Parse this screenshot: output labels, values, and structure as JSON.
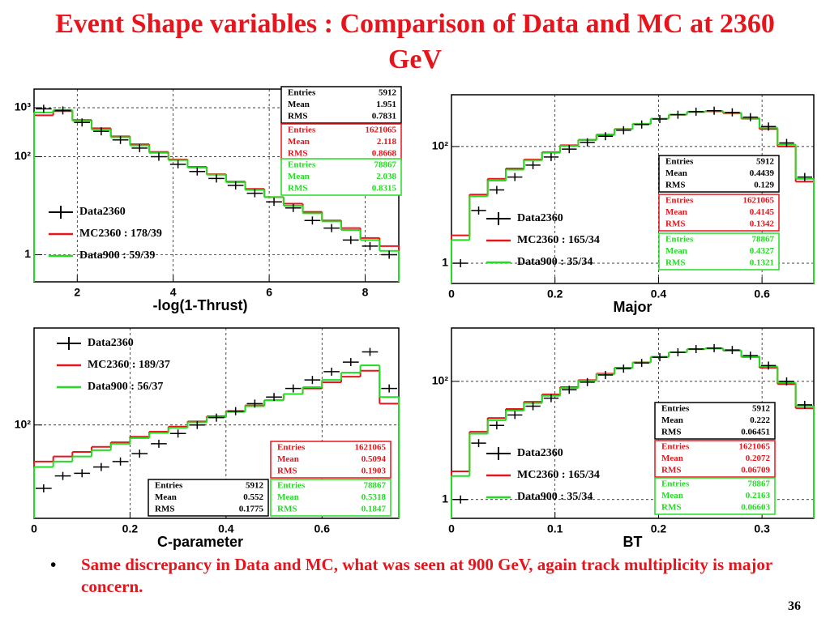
{
  "title": "Event Shape variables : Comparison of Data and MC at 2360 GeV",
  "bullet": "Same discrepancy in Data and MC, what was seen at 900 GeV, again track multiplicity is major concern.",
  "page_number": 36,
  "chart_data": [
    {
      "type": "histogram",
      "x_label": "-log(1-Thrust)",
      "log_y": true,
      "grid": true,
      "xlim": [
        1.1,
        8.7
      ],
      "ylim": [
        0.28,
        2400
      ],
      "xticks": [
        2,
        4,
        6,
        8
      ],
      "yticks": [
        1,
        {
          "value": 100,
          "label": "10²"
        },
        {
          "value": 1000,
          "label": "10³"
        }
      ],
      "bins": [
        1.1,
        1.5,
        1.9,
        2.3,
        2.7,
        3.1,
        3.5,
        3.9,
        4.3,
        4.7,
        5.1,
        5.5,
        5.9,
        6.3,
        6.7,
        7.1,
        7.5,
        7.9,
        8.3,
        8.7
      ],
      "series": [
        {
          "name": "Data2360",
          "style": "points",
          "color": "#000000",
          "values": [
            950,
            880,
            500,
            330,
            220,
            150,
            100,
            70,
            50,
            36,
            26,
            18,
            12,
            9,
            5,
            3.5,
            2,
            1.5,
            1
          ]
        },
        {
          "name": "MC2360 : 178/39",
          "style": "step",
          "color": "#e8141c",
          "values": [
            700,
            850,
            560,
            380,
            260,
            180,
            125,
            88,
            62,
            44,
            31,
            22,
            15,
            11,
            7.5,
            5,
            3.5,
            2.2,
            1.5
          ]
        },
        {
          "name": "Data900 : 59/39",
          "style": "step",
          "color": "#22dd22",
          "values": [
            800,
            900,
            540,
            360,
            250,
            170,
            120,
            85,
            60,
            43,
            30,
            21,
            15,
            10,
            7,
            4.8,
            3.2,
            2,
            1.2
          ]
        }
      ],
      "stat_labels": [
        "Entries",
        "Mean",
        "RMS"
      ],
      "stats": [
        {
          "color": "#000000",
          "entries": 5912,
          "mean": 1.951,
          "rms": 0.7831
        },
        {
          "color": "#e8141c",
          "entries": 1621065,
          "mean": 2.118,
          "rms": 0.8668
        },
        {
          "color": "#22dd22",
          "entries": 78867,
          "mean": 2.038,
          "rms": 0.8315
        }
      ]
    },
    {
      "type": "histogram",
      "x_label": "Major",
      "log_y": true,
      "grid": true,
      "xlim": [
        0,
        0.7
      ],
      "ylim": [
        0.45,
        770
      ],
      "xticks": [
        0,
        0.2,
        0.4,
        0.6
      ],
      "yticks": [
        1,
        {
          "value": 100,
          "label": "10²"
        }
      ],
      "bins": [
        0,
        0.035,
        0.07,
        0.105,
        0.14,
        0.175,
        0.21,
        0.245,
        0.28,
        0.315,
        0.35,
        0.385,
        0.42,
        0.455,
        0.49,
        0.525,
        0.56,
        0.595,
        0.63,
        0.665,
        0.7
      ],
      "series": [
        {
          "name": "Data2360",
          "style": "points",
          "color": "#000000",
          "values": [
            1,
            8,
            18,
            30,
            48,
            66,
            90,
            118,
            150,
            190,
            238,
            295,
            350,
            395,
            410,
            385,
            318,
            220,
            115,
            30
          ]
        },
        {
          "name": "MC2360 : 165/34",
          "style": "step",
          "color": "#e8141c",
          "values": [
            3,
            15,
            28,
            42,
            60,
            80,
            105,
            130,
            160,
            200,
            245,
            300,
            350,
            390,
            400,
            370,
            300,
            200,
            100,
            25
          ]
        },
        {
          "name": "Data900 : 35/34",
          "style": "step",
          "color": "#22dd22",
          "values": [
            2.5,
            14,
            26,
            40,
            58,
            78,
            102,
            128,
            158,
            198,
            243,
            300,
            352,
            395,
            405,
            378,
            308,
            210,
            108,
            28
          ]
        }
      ],
      "stat_labels": [
        "Entries",
        "Mean",
        "RMS"
      ],
      "stats": [
        {
          "color": "#000000",
          "entries": 5912,
          "mean": 0.4439,
          "rms": 0.129
        },
        {
          "color": "#e8141c",
          "entries": 1621065,
          "mean": 0.4145,
          "rms": 0.1342
        },
        {
          "color": "#22dd22",
          "entries": 78867,
          "mean": 0.4327,
          "rms": 0.1321
        }
      ]
    },
    {
      "type": "histogram",
      "x_label": "C-parameter",
      "log_y": true,
      "grid": true,
      "xlim": [
        0,
        0.76
      ],
      "ylim": [
        17,
        630
      ],
      "xticks": [
        0,
        0.2,
        0.4,
        0.6
      ],
      "yticks": [
        {
          "value": 100,
          "label": "10²"
        }
      ],
      "bins": [
        0,
        0.04,
        0.08,
        0.12,
        0.16,
        0.2,
        0.24,
        0.28,
        0.32,
        0.36,
        0.4,
        0.44,
        0.48,
        0.52,
        0.56,
        0.6,
        0.64,
        0.68,
        0.72,
        0.76
      ],
      "series": [
        {
          "name": "Data2360",
          "style": "points",
          "color": "#000000",
          "values": [
            30,
            38,
            40,
            45,
            50,
            58,
            70,
            85,
            100,
            115,
            130,
            150,
            170,
            200,
            235,
            275,
            330,
            400,
            200
          ]
        },
        {
          "name": "MC2360 : 189/37",
          "style": "step",
          "color": "#e8141c",
          "values": [
            50,
            55,
            60,
            66,
            72,
            80,
            88,
            97,
            107,
            118,
            130,
            145,
            160,
            180,
            200,
            225,
            250,
            280,
            150
          ]
        },
        {
          "name": "Data900 : 56/37",
          "style": "step",
          "color": "#22dd22",
          "values": [
            45,
            50,
            55,
            62,
            70,
            78,
            86,
            95,
            105,
            116,
            128,
            143,
            160,
            180,
            205,
            235,
            270,
            310,
            170
          ]
        }
      ],
      "stat_labels": [
        "Entries",
        "Mean",
        "RMS"
      ],
      "stats": [
        {
          "color": "#000000",
          "entries": 5912,
          "mean": 0.552,
          "rms": 0.1775
        },
        {
          "color": "#e8141c",
          "entries": 1621065,
          "mean": 0.5094,
          "rms": 0.1903
        },
        {
          "color": "#22dd22",
          "entries": 78867,
          "mean": 0.5318,
          "rms": 0.1847
        }
      ]
    },
    {
      "type": "histogram",
      "x_label": "BT",
      "log_y": true,
      "grid": true,
      "xlim": [
        0,
        0.35
      ],
      "ylim": [
        0.48,
        800
      ],
      "xticks": [
        0,
        0.1,
        0.2,
        0.3
      ],
      "yticks": [
        1,
        {
          "value": 100,
          "label": "10²"
        }
      ],
      "bins": [
        0,
        0.0175,
        0.035,
        0.0525,
        0.07,
        0.0875,
        0.105,
        0.1225,
        0.14,
        0.1575,
        0.175,
        0.1925,
        0.21,
        0.2275,
        0.245,
        0.2625,
        0.28,
        0.2975,
        0.315,
        0.3325,
        0.35
      ],
      "series": [
        {
          "name": "Data2360",
          "style": "points",
          "color": "#000000",
          "values": [
            1,
            9,
            18,
            27,
            38,
            52,
            72,
            97,
            128,
            164,
            205,
            256,
            310,
            352,
            365,
            340,
            272,
            185,
            100,
            40
          ]
        },
        {
          "name": "MC2360 : 165/34",
          "style": "step",
          "color": "#e8141c",
          "values": [
            3,
            14,
            24,
            34,
            45,
            60,
            80,
            105,
            135,
            170,
            210,
            260,
            310,
            350,
            360,
            330,
            260,
            170,
            90,
            35
          ]
        },
        {
          "name": "Data900 : 35/34",
          "style": "step",
          "color": "#22dd22",
          "values": [
            2.5,
            13,
            22,
            32,
            43,
            57,
            77,
            102,
            132,
            168,
            208,
            258,
            310,
            350,
            362,
            335,
            265,
            178,
            95,
            38
          ]
        }
      ],
      "stat_labels": [
        "Entries",
        "Mean",
        "RMS"
      ],
      "stats": [
        {
          "color": "#000000",
          "entries": 5912,
          "mean": 0.222,
          "rms": 0.06451
        },
        {
          "color": "#e8141c",
          "entries": 1621065,
          "mean": 0.2072,
          "rms": 0.06709
        },
        {
          "color": "#22dd22",
          "entries": 78867,
          "mean": 0.2163,
          "rms": 0.06603
        }
      ]
    }
  ]
}
